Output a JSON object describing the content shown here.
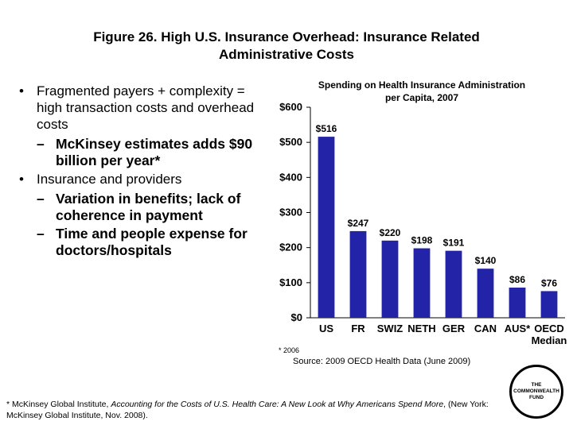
{
  "slide": {
    "title_line1": "Figure 26. High U.S. Insurance Overhead: Insurance Related",
    "title_line2": "Administrative Costs"
  },
  "bullets": [
    {
      "text": "Fragmented payers + complexity = high transaction costs and overhead costs",
      "sub": [
        "McKinsey estimates adds $90 billion per year*"
      ]
    },
    {
      "text": "Insurance and providers",
      "sub": [
        "Variation in benefits; lack of coherence in payment",
        "Time and people expense for doctors/hospitals"
      ]
    }
  ],
  "chart_data": {
    "type": "bar",
    "title_line1": "Spending on Health Insurance Administration",
    "title_line2": "per Capita, 2007",
    "categories": [
      "US",
      "FR",
      "SWIZ",
      "NETH",
      "GER",
      "CAN",
      "AUS*",
      "OECD Median"
    ],
    "values": [
      516,
      247,
      220,
      198,
      191,
      140,
      86,
      76
    ],
    "value_labels": [
      "$516",
      "$247",
      "$220",
      "$198",
      "$191",
      "$140",
      "$86",
      "$76"
    ],
    "y_ticks": [
      "$0",
      "$100",
      "$200",
      "$300",
      "$400",
      "$500",
      "$600"
    ],
    "ylim": [
      0,
      600
    ],
    "bar_color": "#2323a8",
    "grid": false
  },
  "notes": {
    "asterisk_note": "* 2006",
    "source": "Source: 2009 OECD Health Data (June 2009)"
  },
  "footnote": {
    "prefix": "* McKinsey Global Institute, ",
    "italic": "Accounting for the Costs of U.S. Health Care: A New Look at Why Americans Spend More",
    "suffix": ", (New York: McKinsey Global Institute, Nov. 2008)."
  },
  "logo": {
    "line1": "THE",
    "line2": "COMMONWEALTH",
    "line3": "FUND"
  }
}
